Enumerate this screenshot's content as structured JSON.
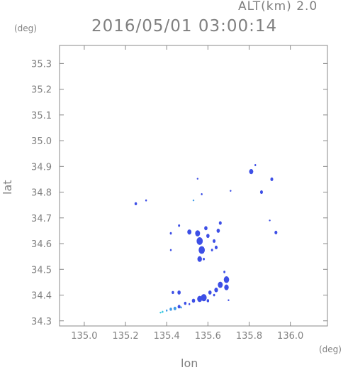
{
  "header": {
    "altitude": "ALT(km) 2.0",
    "timestamp": "2016/05/01 03:00:14",
    "lat_unit": "(deg)",
    "lon_unit": "(deg)"
  },
  "axes": {
    "xlabel": "lon",
    "ylabel": "lat",
    "xlim": [
      134.88,
      136.18
    ],
    "ylim": [
      34.28,
      35.37
    ],
    "xticks": [
      {
        "v": 135.0,
        "t": "135.0"
      },
      {
        "v": 135.2,
        "t": "135.2"
      },
      {
        "v": 135.4,
        "t": "135.4"
      },
      {
        "v": 135.6,
        "t": "135.6"
      },
      {
        "v": 135.8,
        "t": "135.8"
      },
      {
        "v": 136.0,
        "t": "136.0"
      }
    ],
    "yticks": [
      {
        "v": 34.3,
        "t": "34.3"
      },
      {
        "v": 34.4,
        "t": "34.4"
      },
      {
        "v": 34.5,
        "t": "34.5"
      },
      {
        "v": 34.6,
        "t": "34.6"
      },
      {
        "v": 34.7,
        "t": "34.7"
      },
      {
        "v": 34.8,
        "t": "34.8"
      },
      {
        "v": 34.9,
        "t": "34.9"
      },
      {
        "v": 35.0,
        "t": "35.0"
      },
      {
        "v": 35.1,
        "t": "35.1"
      },
      {
        "v": 35.2,
        "t": "35.2"
      },
      {
        "v": 35.3,
        "t": "35.3"
      }
    ]
  },
  "colors": {
    "frame": "#888888",
    "echo_main": "#3d4fe6",
    "echo_light": "#3f9be8",
    "echo_cyan": "#35c8e0"
  },
  "echoes": [
    {
      "lon": 135.25,
      "lat": 34.755,
      "r": 0.006,
      "c": "echo_main"
    },
    {
      "lon": 135.3,
      "lat": 34.768,
      "r": 0.004,
      "c": "echo_main"
    },
    {
      "lon": 135.55,
      "lat": 34.852,
      "r": 0.002,
      "c": "echo_main"
    },
    {
      "lon": 135.57,
      "lat": 34.792,
      "r": 0.004,
      "c": "echo_main"
    },
    {
      "lon": 135.71,
      "lat": 34.805,
      "r": 0.003,
      "c": "echo_main"
    },
    {
      "lon": 135.81,
      "lat": 34.88,
      "r": 0.01,
      "c": "echo_main"
    },
    {
      "lon": 135.83,
      "lat": 34.905,
      "r": 0.004,
      "c": "echo_main"
    },
    {
      "lon": 135.86,
      "lat": 34.8,
      "r": 0.007,
      "c": "echo_main"
    },
    {
      "lon": 135.91,
      "lat": 34.85,
      "r": 0.007,
      "c": "echo_main"
    },
    {
      "lon": 135.93,
      "lat": 34.643,
      "r": 0.007,
      "c": "echo_main"
    },
    {
      "lon": 135.9,
      "lat": 34.69,
      "r": 0.003,
      "c": "echo_main"
    },
    {
      "lon": 135.53,
      "lat": 34.768,
      "r": 0.002,
      "c": "echo_light"
    },
    {
      "lon": 135.46,
      "lat": 34.67,
      "r": 0.005,
      "c": "echo_main"
    },
    {
      "lon": 135.42,
      "lat": 34.64,
      "r": 0.005,
      "c": "echo_main"
    },
    {
      "lon": 135.51,
      "lat": 34.645,
      "r": 0.01,
      "c": "echo_main"
    },
    {
      "lon": 135.55,
      "lat": 34.64,
      "r": 0.012,
      "c": "echo_main"
    },
    {
      "lon": 135.56,
      "lat": 34.61,
      "r": 0.015,
      "c": "echo_main"
    },
    {
      "lon": 135.57,
      "lat": 34.575,
      "r": 0.015,
      "c": "echo_main"
    },
    {
      "lon": 135.56,
      "lat": 34.54,
      "r": 0.011,
      "c": "echo_main"
    },
    {
      "lon": 135.59,
      "lat": 34.66,
      "r": 0.008,
      "c": "echo_main"
    },
    {
      "lon": 135.6,
      "lat": 34.63,
      "r": 0.008,
      "c": "echo_main"
    },
    {
      "lon": 135.63,
      "lat": 34.61,
      "r": 0.007,
      "c": "echo_main"
    },
    {
      "lon": 135.66,
      "lat": 34.68,
      "r": 0.007,
      "c": "echo_main"
    },
    {
      "lon": 135.65,
      "lat": 34.65,
      "r": 0.008,
      "c": "echo_main"
    },
    {
      "lon": 135.64,
      "lat": 34.585,
      "r": 0.007,
      "c": "echo_main"
    },
    {
      "lon": 135.62,
      "lat": 34.575,
      "r": 0.005,
      "c": "echo_main"
    },
    {
      "lon": 135.42,
      "lat": 34.575,
      "r": 0.004,
      "c": "echo_main"
    },
    {
      "lon": 135.58,
      "lat": 34.54,
      "r": 0.005,
      "c": "echo_main"
    },
    {
      "lon": 135.69,
      "lat": 34.46,
      "r": 0.013,
      "c": "echo_main"
    },
    {
      "lon": 135.68,
      "lat": 34.49,
      "r": 0.005,
      "c": "echo_main"
    },
    {
      "lon": 135.66,
      "lat": 34.44,
      "r": 0.012,
      "c": "echo_main"
    },
    {
      "lon": 135.69,
      "lat": 34.43,
      "r": 0.011,
      "c": "echo_main"
    },
    {
      "lon": 135.64,
      "lat": 34.42,
      "r": 0.009,
      "c": "echo_main"
    },
    {
      "lon": 135.61,
      "lat": 34.41,
      "r": 0.008,
      "c": "echo_main"
    },
    {
      "lon": 135.58,
      "lat": 34.39,
      "r": 0.014,
      "c": "echo_main"
    },
    {
      "lon": 135.56,
      "lat": 34.385,
      "r": 0.012,
      "c": "echo_main"
    },
    {
      "lon": 135.53,
      "lat": 34.378,
      "r": 0.008,
      "c": "echo_main"
    },
    {
      "lon": 135.6,
      "lat": 34.378,
      "r": 0.006,
      "c": "echo_main"
    },
    {
      "lon": 135.63,
      "lat": 34.4,
      "r": 0.005,
      "c": "echo_main"
    },
    {
      "lon": 135.7,
      "lat": 34.38,
      "r": 0.003,
      "c": "echo_main"
    },
    {
      "lon": 135.46,
      "lat": 34.41,
      "r": 0.008,
      "c": "echo_main"
    },
    {
      "lon": 135.43,
      "lat": 34.41,
      "r": 0.006,
      "c": "echo_main"
    },
    {
      "lon": 135.49,
      "lat": 34.368,
      "r": 0.006,
      "c": "echo_main"
    },
    {
      "lon": 135.46,
      "lat": 34.355,
      "r": 0.007,
      "c": "echo_main"
    },
    {
      "lon": 135.51,
      "lat": 34.365,
      "r": 0.004,
      "c": "echo_main"
    },
    {
      "lon": 135.44,
      "lat": 34.348,
      "r": 0.007,
      "c": "echo_light"
    },
    {
      "lon": 135.42,
      "lat": 34.345,
      "r": 0.006,
      "c": "echo_light"
    },
    {
      "lon": 135.4,
      "lat": 34.34,
      "r": 0.004,
      "c": "echo_light"
    },
    {
      "lon": 135.38,
      "lat": 34.335,
      "r": 0.004,
      "c": "echo_cyan"
    },
    {
      "lon": 135.37,
      "lat": 34.332,
      "r": 0.003,
      "c": "echo_cyan"
    },
    {
      "lon": 135.47,
      "lat": 34.352,
      "r": 0.004,
      "c": "echo_light"
    }
  ]
}
